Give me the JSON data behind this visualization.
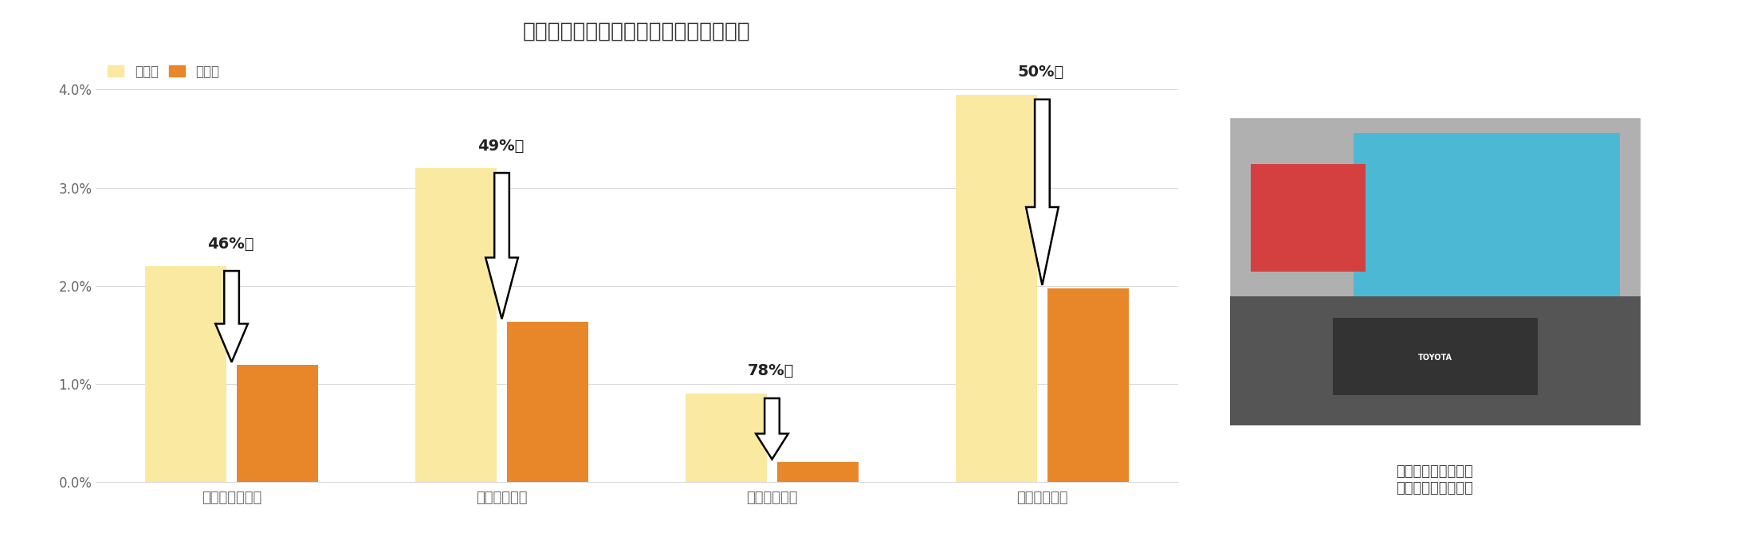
{
  "title": "危険告知交差点における運転挙動の変化",
  "categories": [
    "速度超過発生率",
    "急発進発生率",
    "急加速発生率",
    "急減速発生率"
  ],
  "before_values": [
    0.022,
    0.032,
    0.009,
    0.0395
  ],
  "after_values": [
    0.0119,
    0.0163,
    0.00198,
    0.01975
  ],
  "reductions": [
    "46%減",
    "49%減",
    "78%減",
    "50%減"
  ],
  "before_color": "#FAE9A0",
  "after_color": "#E8872A",
  "legend_before": "実証前",
  "legend_after": "実証後",
  "ylim_max": 0.044,
  "ytick_vals": [
    0.0,
    0.01,
    0.02,
    0.03,
    0.04
  ],
  "ytick_labels": [
    "0.0%",
    "1.0%",
    "2.0%",
    "3.0%",
    "4.0%"
  ],
  "title_fontsize": 19,
  "label_fontsize": 13,
  "tick_fontsize": 12,
  "annotation_fontsize": 14,
  "bg_color": "#ffffff",
  "grid_color": "#d8d8d8",
  "text_color": "#666666",
  "annot_color": "#222222",
  "side_text": "かわいいイラストで\n運転状況をお知らせ",
  "side_text_fontsize": 13
}
